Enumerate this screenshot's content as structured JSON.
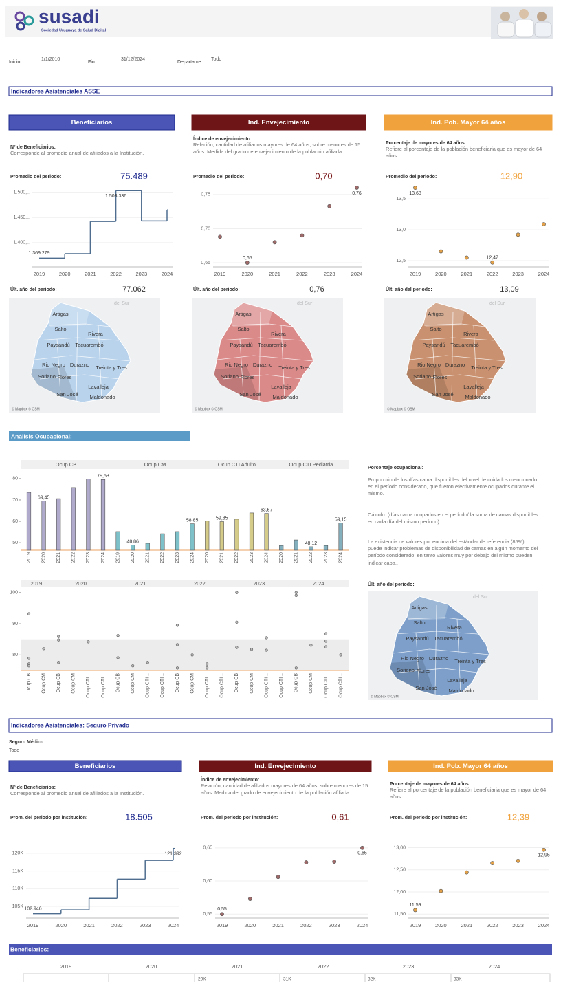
{
  "header": {
    "logo": "susadi",
    "tagline": "Sociedad Uruguaya de Salud Digital"
  },
  "filters": [
    {
      "label": "Inicio",
      "value": "1/1/2010"
    },
    {
      "label": "Fin",
      "value": "31/12/2024"
    },
    {
      "label": "Departame..",
      "value": "Todo"
    }
  ],
  "map": {
    "sea": "del Sur",
    "credit": "© Mapbox © OSM",
    "departments": [
      "Artigas",
      "Salto",
      "Rivera",
      "Paysandú",
      "Tacuarembó",
      "Rio Negro",
      "Durazno",
      "Treinta y Tres",
      "Soriano",
      "Flores",
      "Lavalleja",
      "San José",
      "Maldonado"
    ]
  },
  "asse": {
    "title": "Indicadores Asistenciales ASSE",
    "panels": [
      {
        "header": "Beneficiarios",
        "color": "#4a55b5",
        "avg_color": "#1f2a8f",
        "desc_title": "Nº de Beneficiarios:",
        "desc": "Corresponde al promedio anual de afiliados a la Institución.",
        "avg_label": "Promedio del periodo:",
        "avg": "75.489",
        "last_label": "Últ. año del periodo:",
        "last": "77.062",
        "map_fill": "#b9d3ec",
        "chart": {
          "type": "step",
          "color": "#4e6d8f",
          "x": [
            2019,
            2020,
            2021,
            2022,
            2023,
            2024
          ],
          "values": [
            1369279,
            1378000,
            1442000,
            1503336,
            1443000,
            1465000
          ],
          "value_labels": [
            "1.369.279",
            null,
            null,
            "1.503.336",
            null,
            null
          ],
          "ylim": [
            1352000,
            1520000
          ],
          "yticks": [
            {
              "value": 1400000,
              "label": "1.400,.."
            },
            {
              "value": 1450000,
              "label": "1.450,.."
            },
            {
              "value": 1500000,
              "label": "1.500,.."
            }
          ]
        }
      },
      {
        "header": "Ind. Envejecimiento",
        "color": "#6e1518",
        "avg_color": "#7a1a1d",
        "desc_title": "Índice de envejecimiento:",
        "desc": "Relación, cantidad de afiliados mayores de 64 años, sobre menores de 15 años.  Medida del grado de envejecimiento de la población afiliada.",
        "avg_label": "Promedio del periodo:",
        "avg": "0,70",
        "last_label": "Últ. año del periodo:",
        "last": "0,76",
        "map_fill": "#db8a8a",
        "chart": {
          "type": "scatter",
          "color": "#a06a6a",
          "x": [
            2019,
            2020,
            2021,
            2022,
            2023,
            2024
          ],
          "values": [
            0.688,
            0.65,
            0.68,
            0.69,
            0.733,
            0.76
          ],
          "value_labels": [
            null,
            "0,65",
            null,
            null,
            null,
            "0,76"
          ],
          "ylim": [
            0.644,
            0.768
          ],
          "yticks": [
            {
              "value": 0.65,
              "label": "0,65"
            },
            {
              "value": 0.7,
              "label": "0,70"
            },
            {
              "value": 0.75,
              "label": "0,75"
            }
          ]
        }
      },
      {
        "header": "Ind. Pob. Mayor 64 años",
        "color": "#f0a23c",
        "avg_color": "#f0a23c",
        "desc_title": "Porcentaje de mayores de 64 años:",
        "desc": "Refiere al porcentaje de la población beneficiaria que es mayor de 64 años.",
        "avg_label": "Promedio del periodo:",
        "avg": "12,90",
        "last_label": "Últ. año del periodo:",
        "last": "13,09",
        "map_fill": "#c9916f",
        "chart": {
          "type": "scatter",
          "color": "#e3a24a",
          "x": [
            2019,
            2020,
            2021,
            2022,
            2023,
            2024
          ],
          "values": [
            13.68,
            12.65,
            12.55,
            12.47,
            12.92,
            13.09
          ],
          "value_labels": [
            "13,68",
            null,
            null,
            "12,47",
            null,
            null
          ],
          "ylim": [
            12.4,
            13.77
          ],
          "yticks": [
            {
              "value": 12.5,
              "label": "12,5"
            },
            {
              "value": 13,
              "label": "13,0"
            },
            {
              "value": 13.5,
              "label": "13,5"
            }
          ]
        }
      }
    ]
  },
  "ocup": {
    "title": "Análisis Ocupacional:",
    "bars": {
      "type": "bar",
      "ylim": [
        46.5,
        83.5
      ],
      "yticks": [
        50,
        60,
        70,
        80
      ],
      "groups": [
        {
          "name": "Ocup CB",
          "color": "#b0aacd",
          "x": [
            2019,
            2020,
            2021,
            2022,
            2023,
            2024
          ],
          "values": [
            73.5,
            69.45,
            70.6,
            75.8,
            79.8,
            79.53
          ],
          "value_labels": [
            null,
            "69,45",
            null,
            null,
            null,
            "79,53"
          ]
        },
        {
          "name": "Ocup CM",
          "color": "#7fc1c9",
          "x": [
            2019,
            2020,
            2021,
            2022,
            2023,
            2024
          ],
          "values": [
            55.2,
            48.86,
            49.7,
            54.2,
            55.2,
            58.85
          ],
          "value_labels": [
            null,
            "48,86",
            null,
            null,
            null,
            "58,85"
          ]
        },
        {
          "name": "Ocup CTI Adulto",
          "color": "#d6cc8a",
          "x": [
            2020,
            2021,
            2022,
            2023,
            2024
          ],
          "values": [
            60.1,
            59.85,
            61,
            63.9,
            63.67
          ],
          "value_labels": [
            null,
            "59,85",
            null,
            null,
            "63,67"
          ]
        },
        {
          "name": "Ocup CTI Pediatria",
          "color": "#84afbd",
          "x": [
            2020,
            2021,
            2022,
            2023,
            2024
          ],
          "values": [
            48.7,
            51.3,
            48.12,
            48.7,
            59.15
          ],
          "value_labels": [
            null,
            null,
            "48,12",
            null,
            "59,15"
          ]
        }
      ]
    },
    "strip": {
      "type": "strip",
      "ylim": [
        75,
        101.5
      ],
      "yticks": [
        80,
        90,
        100
      ],
      "reference_band": [
        75,
        85
      ],
      "years": [
        {
          "year": 2019,
          "columns": [
            {
              "name": "Ocup CB",
              "values": [
                93.2,
                78.9,
                77.1,
                76.5
              ]
            },
            {
              "name": "Ocup CM",
              "values": [
                82
              ]
            }
          ]
        },
        {
          "year": 2020,
          "columns": [
            {
              "name": "Ocup CB",
              "values": [
                85.9,
                84.8,
                77.6
              ]
            },
            {
              "name": "Ocup CM",
              "values": []
            },
            {
              "name": "Ocup CTI ..",
              "values": [
                84.2
              ]
            },
            {
              "name": "Ocup CTI ..",
              "values": []
            }
          ]
        },
        {
          "year": 2021,
          "columns": [
            {
              "name": "Ocup CB",
              "values": [
                86.2,
                79.1
              ]
            },
            {
              "name": "Ocup CM",
              "values": [
                76.5
              ]
            },
            {
              "name": "Ocup CTI ..",
              "values": [
                77.6
              ]
            },
            {
              "name": "Ocup CTI ..",
              "values": []
            }
          ]
        },
        {
          "year": 2022,
          "columns": [
            {
              "name": "Ocup CB",
              "values": [
                89.5,
                83.3,
                75.8
              ]
            },
            {
              "name": "Ocup CM",
              "values": [
                80
              ]
            },
            {
              "name": "Ocup CTI ..",
              "values": [
                77.1,
                75.8
              ]
            },
            {
              "name": "Ocup CTI ..",
              "values": []
            }
          ]
        },
        {
          "year": 2023,
          "columns": [
            {
              "name": "Ocup CB",
              "values": [
                100,
                90.5,
                82.4
              ]
            },
            {
              "name": "Ocup CM",
              "values": [
                81.8
              ]
            },
            {
              "name": "Ocup CTI ..",
              "values": [
                85.5,
                81.5
              ]
            },
            {
              "name": "Ocup CTI ..",
              "values": []
            }
          ]
        },
        {
          "year": 2024,
          "columns": [
            {
              "name": "Ocup CB",
              "values": [
                100,
                99.1,
                75.8
              ]
            },
            {
              "name": "Ocup CM",
              "values": [
                83.1
              ]
            },
            {
              "name": "Ocup CTI ..",
              "values": [
                86.8,
                84.4,
                82.6
              ]
            },
            {
              "name": "Ocup CTI ..",
              "values": [
                80
              ]
            }
          ]
        }
      ]
    },
    "text_title": "Porcentaje ocupacional:",
    "paragraphs": [
      "Proporción de los días cama disponibles del nivel de cuidados mencionado en el período considerado, que fueron efectivamente ocupados durante el mismo.",
      "Cálculo: (días cama ocupados en el período/ la suma de camas disponibles en cada día del mismo período)",
      "La existencia de valores por encima del estándar de referencia (85%), puede indicar problemas de disponibilidad de camas en algún momento del período considerado, en tanto valores muy por debajo del mismo pueden indicar capa.."
    ],
    "last_label": "Últ. año del periodo:",
    "map_fill": "#7d9fca"
  },
  "privado": {
    "title": "Indicadores Asistenciales: Seguro Privado",
    "filter_label": "Seguro Médico:",
    "filter_value": "Todo",
    "panels": [
      {
        "header": "Beneficiarios",
        "color": "#4a55b5",
        "avg_color": "#1f2a8f",
        "desc_title": "Nº de Beneficiarios:",
        "desc": "Corresponde al promedio anual de afiliados a la Institución.",
        "avg_label": "Prom. del periodo por institución:",
        "avg": "18.505",
        "chart": {
          "type": "step",
          "color": "#4e6d8f",
          "x": [
            2019,
            2020,
            2021,
            2022,
            2023,
            2024
          ],
          "values": [
            102946,
            104000,
            107300,
            112700,
            118000,
            121392
          ],
          "value_labels": [
            "102.946",
            null,
            null,
            null,
            null,
            "121.392"
          ],
          "ylim": [
            101700,
            122500
          ],
          "yticks": [
            {
              "value": 105000,
              "label": "105K"
            },
            {
              "value": 110000,
              "label": "110K"
            },
            {
              "value": 115000,
              "label": "115K"
            },
            {
              "value": 120000,
              "label": "120K"
            }
          ]
        }
      },
      {
        "header": "Ind. Envejecimiento",
        "color": "#6e1518",
        "avg_color": "#7a1a1d",
        "desc_title": "Índice de envejecimiento:",
        "desc": "Relación, cantidad de afiliados mayores de 64 años, sobre menores de 15 años.  Medida del grado de envejecimiento de la población afiliada.",
        "avg_label": "Prom. del periodo por institución:",
        "avg": "0,61",
        "chart": {
          "type": "scatter",
          "color": "#a06a6a",
          "x": [
            2019,
            2020,
            2021,
            2022,
            2023,
            2024
          ],
          "values": [
            0.55,
            0.573,
            0.606,
            0.628,
            0.629,
            0.65
          ],
          "value_labels": [
            "0,55",
            null,
            null,
            null,
            null,
            "0,65"
          ],
          "ylim": [
            0.544,
            0.655
          ],
          "yticks": [
            {
              "value": 0.55,
              "label": "0,55"
            },
            {
              "value": 0.6,
              "label": "0,60"
            },
            {
              "value": 0.65,
              "label": "0,65"
            }
          ]
        }
      },
      {
        "header": "Ind. Pob. Mayor 64 años",
        "color": "#f0a23c",
        "avg_color": "#f0a23c",
        "desc_title": "Porcentaje de mayores de 64 años:",
        "desc": "Refiere al porcentaje de la población beneficiaria que es mayor de 64 años.",
        "avg_label": "Prom. del periodo por institución:",
        "avg": "12,39",
        "chart": {
          "type": "scatter",
          "color": "#e3a24a",
          "x": [
            2019,
            2020,
            2021,
            2022,
            2023,
            2024
          ],
          "values": [
            11.59,
            12.02,
            12.44,
            12.65,
            12.7,
            12.95
          ],
          "value_labels": [
            "11,59",
            null,
            null,
            null,
            null,
            "12,95"
          ],
          "ylim": [
            11.41,
            13.07
          ],
          "yticks": [
            {
              "value": 11.5,
              "label": "11,50"
            },
            {
              "value": 12,
              "label": "12,00"
            },
            {
              "value": 12.5,
              "label": "12,50"
            },
            {
              "value": 13,
              "label": "13,00"
            }
          ]
        }
      }
    ]
  },
  "beneficiarios_table": {
    "title": "Beneficiarios:",
    "years": [
      2019,
      2020,
      2021,
      2022,
      2023,
      2024
    ],
    "cells": [
      "29K",
      "31K",
      "32K",
      "33K"
    ]
  }
}
